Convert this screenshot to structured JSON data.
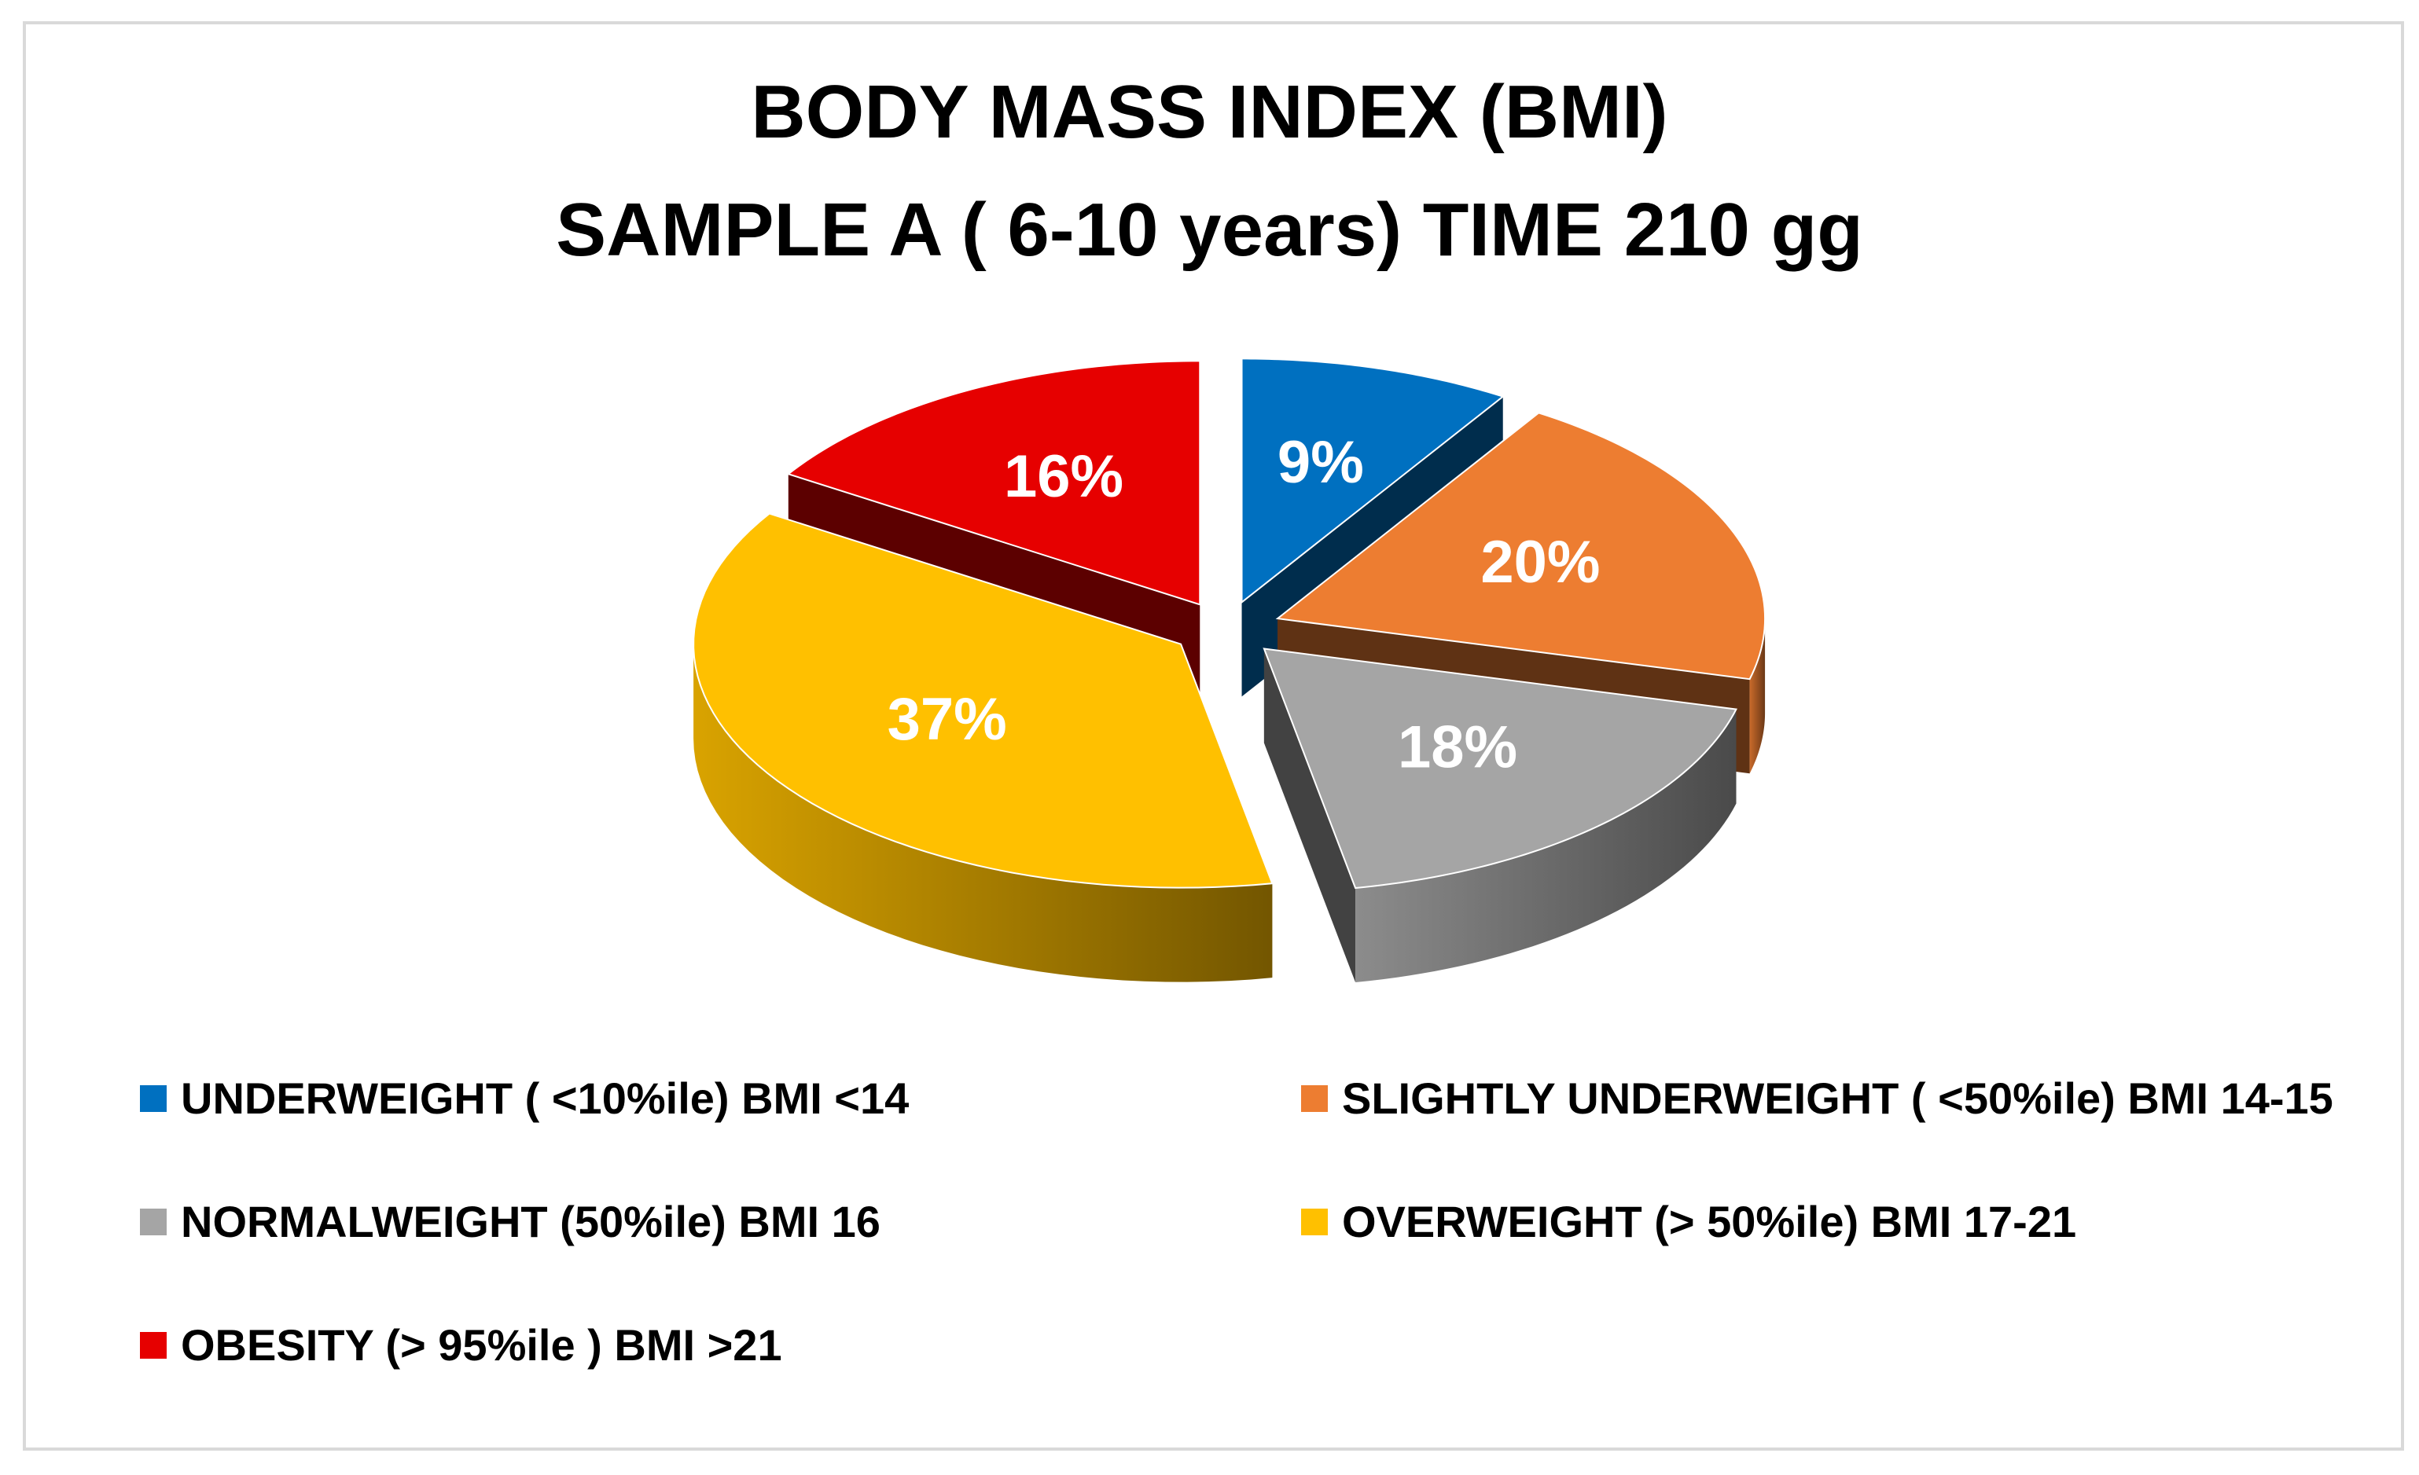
{
  "chart_data": {
    "type": "pie",
    "title": [
      "BODY MASS INDEX (BMI)",
      "SAMPLE A  ( 6-10 years) TIME 210 gg"
    ],
    "style": "3d-exploded",
    "legend_position": "bottom",
    "categories": [
      "UNDERWEIGHT ( <10%ile)  BMI <14",
      "SLIGHTLY UNDERWEIGHT ( <50%ile) BMI 14-15",
      "NORMALWEIGHT (50%ile) BMI 16",
      "OVERWEIGHT (> 50%ile) BMI 17-21",
      "OBESITY (> 95%ile ) BMI >21"
    ],
    "values": [
      9,
      20,
      18,
      37,
      16
    ],
    "labels": [
      "9%",
      "20%",
      "18%",
      "37%",
      "16%"
    ],
    "colors": [
      "#0070c0",
      "#ed7d31",
      "#a5a5a5",
      "#ffc000",
      "#e60000"
    ]
  }
}
